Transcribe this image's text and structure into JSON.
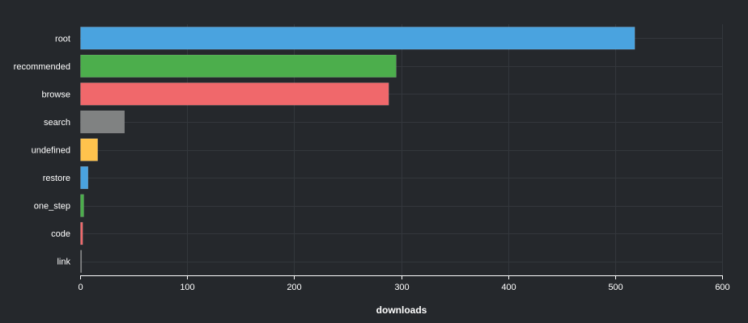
{
  "chart_data": {
    "type": "bar",
    "orientation": "horizontal",
    "categories": [
      "root",
      "recommended",
      "browse",
      "search",
      "undefined",
      "restore",
      "one_step",
      "code",
      "link"
    ],
    "values": [
      518,
      295,
      288,
      41,
      16,
      7,
      3,
      2,
      1
    ],
    "colors": [
      "#4aa3df",
      "#4cae4c",
      "#f0686b",
      "#808282",
      "#ffc34d",
      "#4aa3df",
      "#4cae4c",
      "#f0686b",
      "#808282"
    ],
    "xlabel": "downloads",
    "ylabel": "",
    "title": "",
    "xlim": [
      0,
      600
    ],
    "xticks": [
      0,
      100,
      200,
      300,
      400,
      500,
      600
    ],
    "grid": true,
    "background": "#25282c"
  }
}
